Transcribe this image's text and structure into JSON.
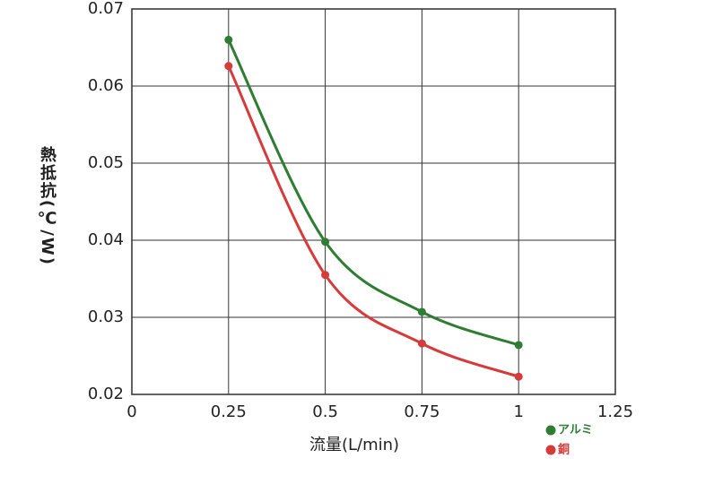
{
  "chart_data": {
    "type": "line",
    "x_label": "流量(L/min)",
    "y_label": "熱抵抗(℃/W)",
    "x": [
      0.25,
      0.5,
      0.75,
      1
    ],
    "series": [
      {
        "name": "アルミ",
        "color": "#2e7d32",
        "values": [
          0.066,
          0.0398,
          0.0307,
          0.0264
        ]
      },
      {
        "name": "銅",
        "color": "#d63a3a",
        "values": [
          0.0626,
          0.0355,
          0.0266,
          0.0223
        ]
      }
    ],
    "xlim": [
      0,
      1.25
    ],
    "xticks": [
      0,
      0.25,
      0.5,
      0.75,
      1,
      1.25
    ],
    "ylim": [
      0.02,
      0.07
    ],
    "yticks": [
      0.02,
      0.03,
      0.04,
      0.05,
      0.06,
      0.07
    ],
    "grid": true,
    "smooth": true
  }
}
